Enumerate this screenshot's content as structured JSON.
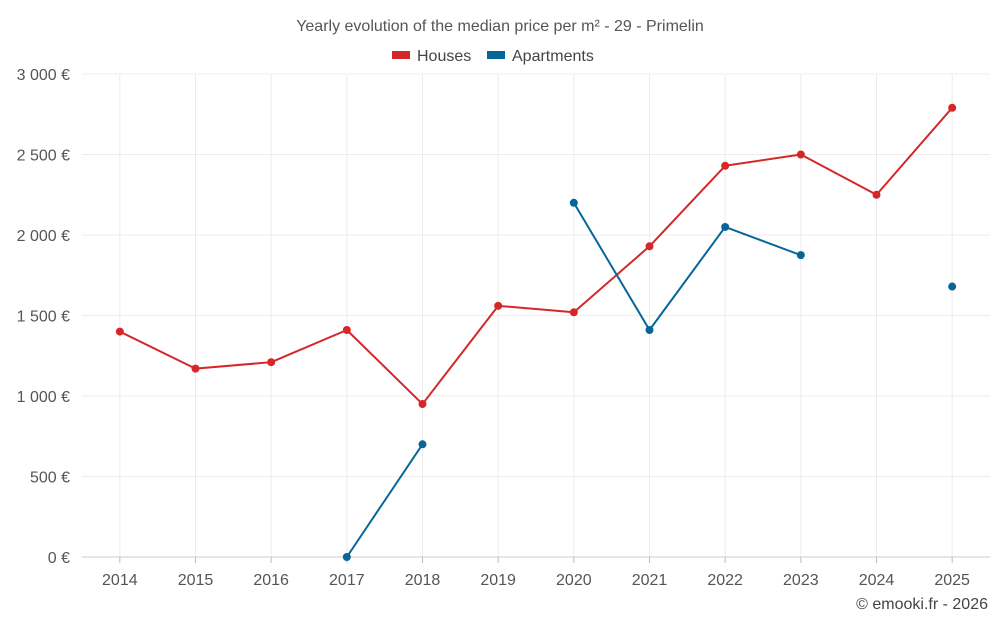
{
  "chart_data": {
    "type": "line",
    "title": "Yearly evolution of the median price per m² - 29 - Primelin",
    "categories": [
      "2014",
      "2015",
      "2016",
      "2017",
      "2018",
      "2019",
      "2020",
      "2021",
      "2022",
      "2023",
      "2024",
      "2025"
    ],
    "y_ticks": [
      "0 €",
      "500 €",
      "1 000 €",
      "1 500 €",
      "2 000 €",
      "2 500 €",
      "3 000 €"
    ],
    "y_tick_values": [
      0,
      500,
      1000,
      1500,
      2000,
      2500,
      3000
    ],
    "ylim": [
      0,
      3000
    ],
    "grid": true,
    "legend_position": "top-center",
    "series": [
      {
        "name": "Houses",
        "color": "#d62728",
        "values": [
          1400,
          1170,
          1210,
          1410,
          950,
          1560,
          1520,
          1930,
          2430,
          2500,
          2250,
          2790
        ]
      },
      {
        "name": "Apartments",
        "color": "#076599",
        "values": [
          null,
          null,
          null,
          0,
          700,
          null,
          2200,
          1410,
          2050,
          1875,
          null,
          1680
        ]
      }
    ]
  },
  "credit": "© emooki.fr - 2026"
}
